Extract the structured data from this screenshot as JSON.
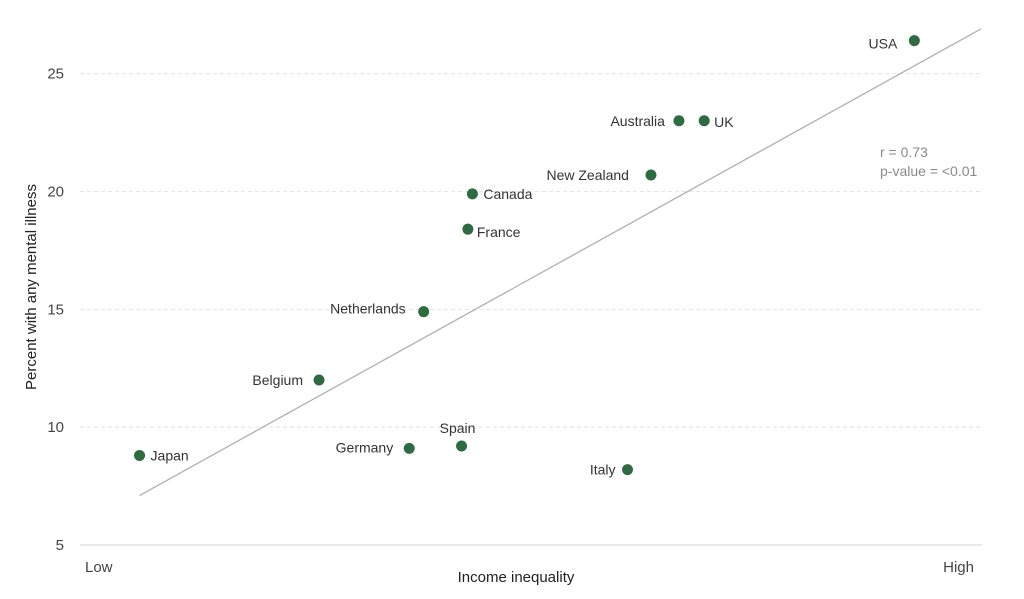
{
  "colors": {
    "point": "#2e6b41",
    "trend": "#b0b0b0"
  },
  "chart_data": {
    "type": "scatter",
    "xlabel": "Income inequality",
    "ylabel": "Percent with any mental illness",
    "x_tick_labels": {
      "low": "Low",
      "high": "High"
    },
    "xlim": [
      0,
      100
    ],
    "ylim": [
      5,
      27
    ],
    "yticks": [
      5,
      10,
      15,
      20,
      25
    ],
    "grid": true,
    "points": [
      {
        "label": "Japan",
        "x": 6.6,
        "y": 8.8
      },
      {
        "label": "Belgium",
        "x": 26.5,
        "y": 12.0
      },
      {
        "label": "Germany",
        "x": 36.5,
        "y": 9.1
      },
      {
        "label": "Spain",
        "x": 42.3,
        "y": 9.2
      },
      {
        "label": "Netherlands",
        "x": 38.1,
        "y": 14.9
      },
      {
        "label": "France",
        "x": 43.0,
        "y": 18.4
      },
      {
        "label": "Canada",
        "x": 43.5,
        "y": 19.9
      },
      {
        "label": "Italy",
        "x": 60.7,
        "y": 8.2
      },
      {
        "label": "New Zealand",
        "x": 63.3,
        "y": 20.7
      },
      {
        "label": "Australia",
        "x": 66.4,
        "y": 23.0
      },
      {
        "label": "UK",
        "x": 69.2,
        "y": 23.0
      },
      {
        "label": "USA",
        "x": 92.5,
        "y": 26.4
      }
    ],
    "trend_line": {
      "x": [
        6.6,
        99.9
      ],
      "y": [
        7.1,
        26.9
      ]
    },
    "annotations": {
      "r": "r = 0.73",
      "p": "p-value = <0.01"
    }
  }
}
